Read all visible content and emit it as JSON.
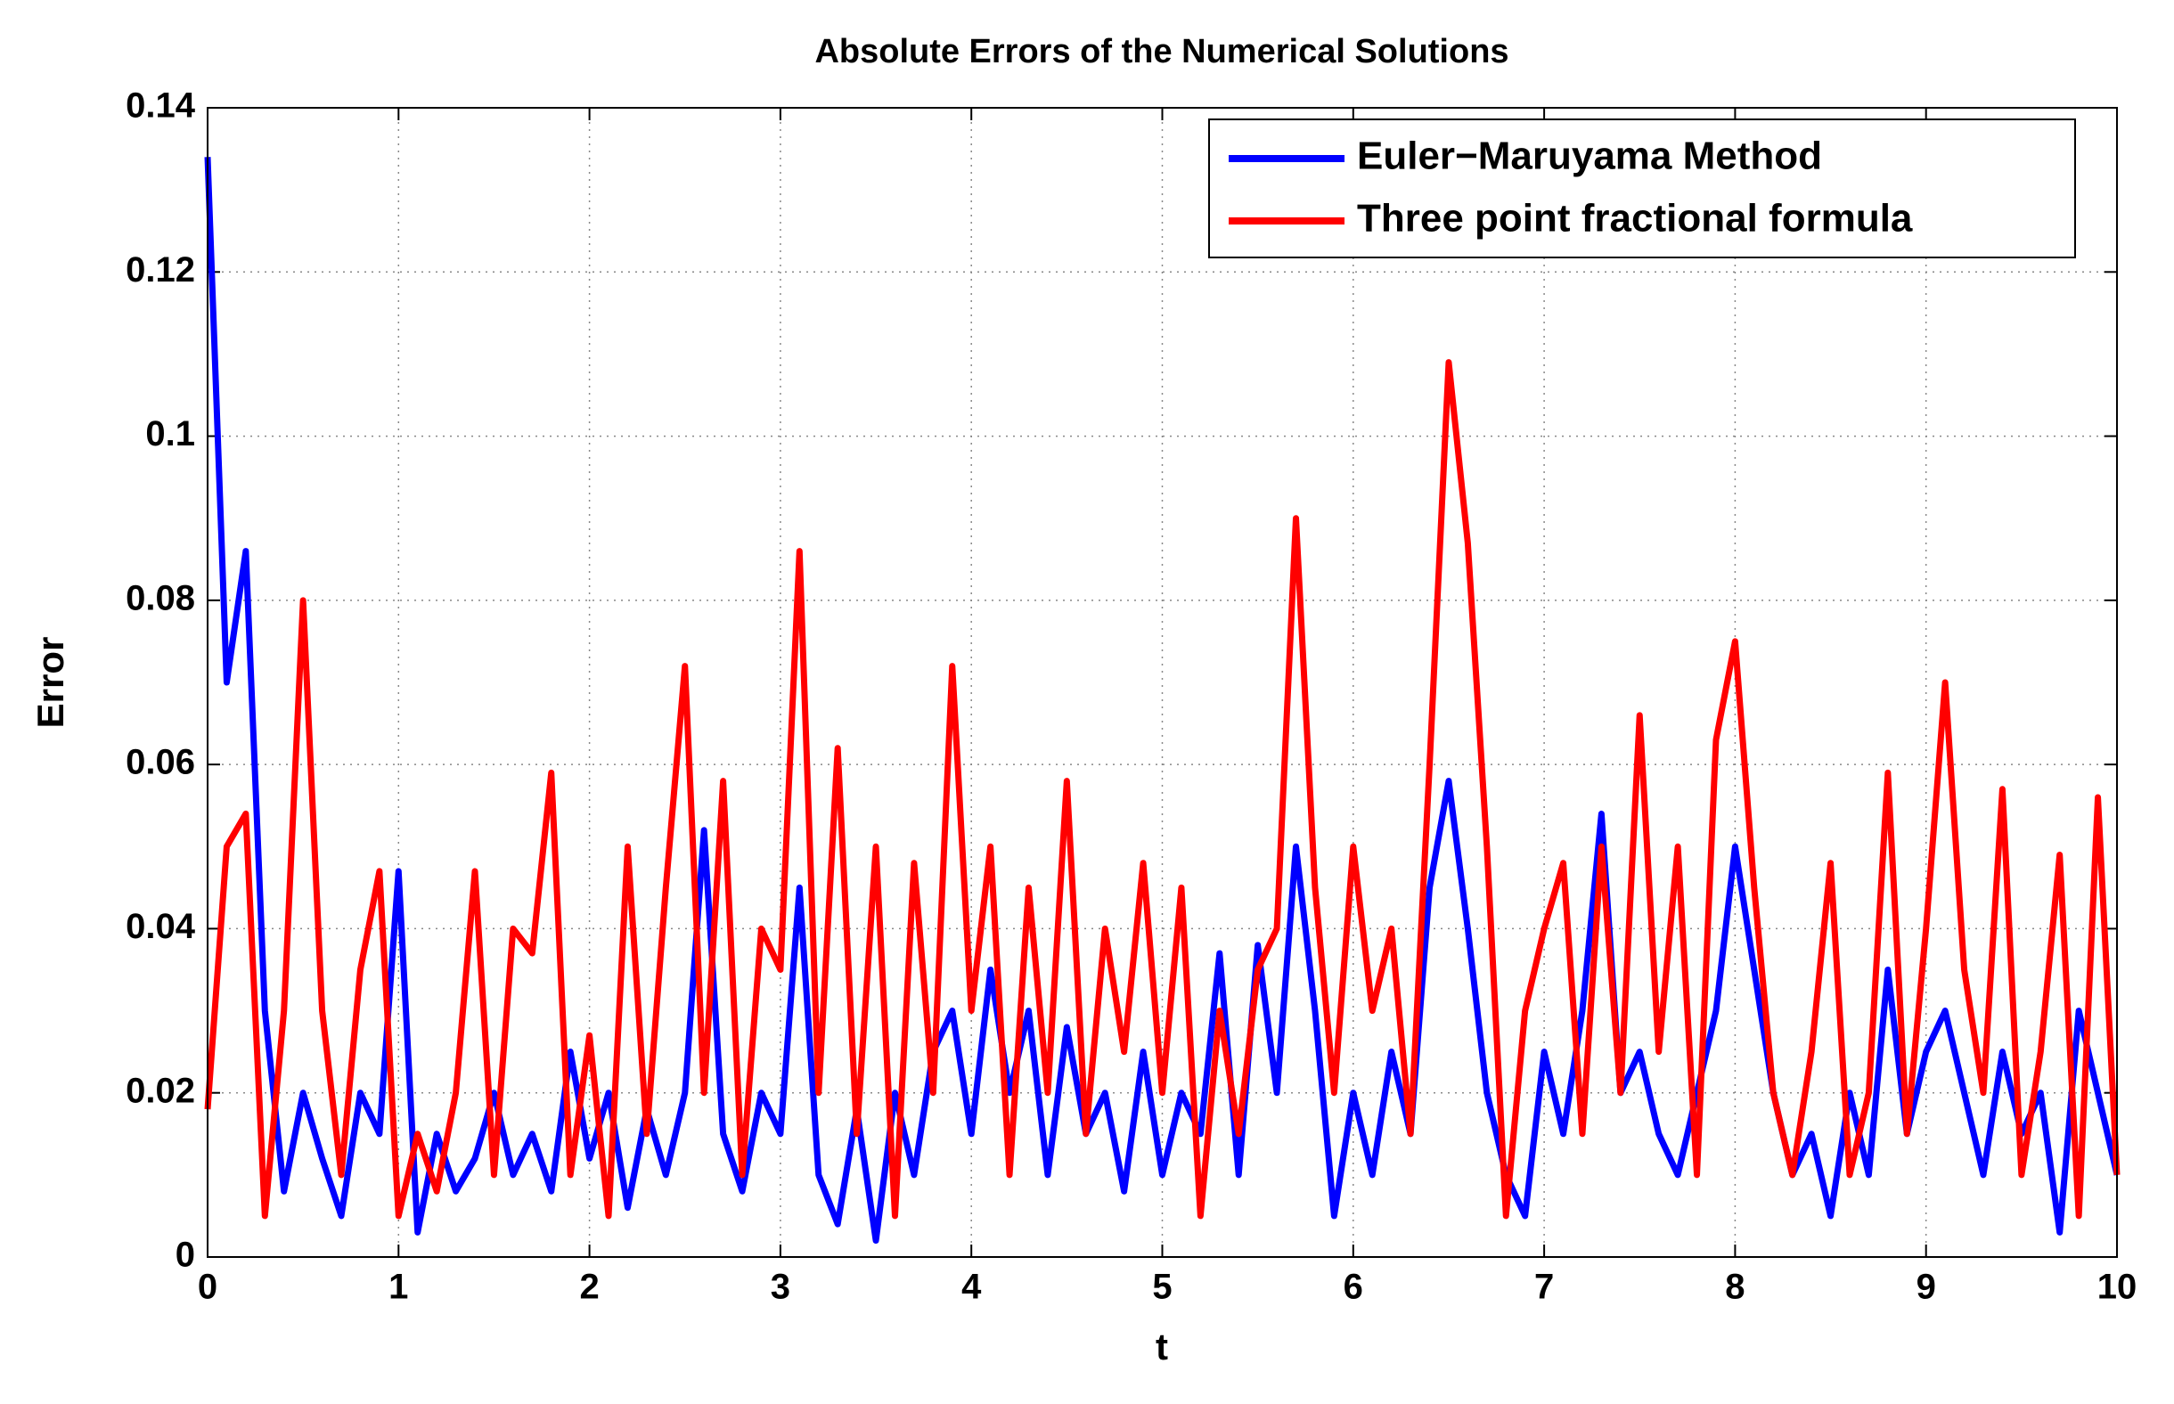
{
  "chart_data": {
    "type": "line",
    "title": "Absolute Errors of the Numerical Solutions",
    "x_label": "t",
    "y_label": "Error",
    "x": [
      0,
      0.1,
      0.2,
      0.3,
      0.4,
      0.5,
      0.6,
      0.7,
      0.8,
      0.9,
      1,
      1.1,
      1.2,
      1.3,
      1.4,
      1.5,
      1.6,
      1.7,
      1.8,
      1.9,
      2,
      2.1,
      2.2,
      2.3,
      2.4,
      2.5,
      2.6,
      2.7,
      2.8,
      2.9,
      3,
      3.1,
      3.2,
      3.3,
      3.4,
      3.5,
      3.6,
      3.7,
      3.8,
      3.9,
      4,
      4.1,
      4.2,
      4.3,
      4.4,
      4.5,
      4.6,
      4.7,
      4.8,
      4.9,
      5,
      5.1,
      5.2,
      5.3,
      5.4,
      5.5,
      5.6,
      5.7,
      5.8,
      5.9,
      6,
      6.1,
      6.2,
      6.3,
      6.4,
      6.5,
      6.6,
      6.7,
      6.8,
      6.9,
      7,
      7.1,
      7.2,
      7.3,
      7.4,
      7.5,
      7.6,
      7.7,
      7.8,
      7.9,
      8,
      8.1,
      8.2,
      8.3,
      8.4,
      8.5,
      8.6,
      8.7,
      8.8,
      8.9,
      9,
      9.1,
      9.2,
      9.3,
      9.4,
      9.5,
      9.6,
      9.7,
      9.8,
      9.9,
      10
    ],
    "series": [
      {
        "name": "Euler−Maruyama Method",
        "color": "#0000ff",
        "values": [
          0.134,
          0.07,
          0.086,
          0.03,
          0.008,
          0.02,
          0.012,
          0.005,
          0.02,
          0.015,
          0.047,
          0.003,
          0.015,
          0.008,
          0.012,
          0.02,
          0.01,
          0.015,
          0.008,
          0.025,
          0.012,
          0.02,
          0.006,
          0.018,
          0.01,
          0.02,
          0.052,
          0.015,
          0.008,
          0.02,
          0.015,
          0.045,
          0.01,
          0.004,
          0.018,
          0.002,
          0.02,
          0.01,
          0.025,
          0.03,
          0.015,
          0.035,
          0.02,
          0.03,
          0.01,
          0.028,
          0.015,
          0.02,
          0.008,
          0.025,
          0.01,
          0.02,
          0.015,
          0.037,
          0.01,
          0.038,
          0.02,
          0.05,
          0.03,
          0.005,
          0.02,
          0.01,
          0.025,
          0.015,
          0.045,
          0.058,
          0.04,
          0.02,
          0.01,
          0.005,
          0.025,
          0.015,
          0.03,
          0.054,
          0.02,
          0.025,
          0.015,
          0.01,
          0.02,
          0.03,
          0.05,
          0.035,
          0.02,
          0.01,
          0.015,
          0.005,
          0.02,
          0.01,
          0.035,
          0.015,
          0.025,
          0.03,
          0.02,
          0.01,
          0.025,
          0.015,
          0.02,
          0.003,
          0.03,
          0.02,
          0.01
        ]
      },
      {
        "name": "Three point fractional formula",
        "color": "#ff0000",
        "values": [
          0.018,
          0.05,
          0.054,
          0.005,
          0.03,
          0.08,
          0.03,
          0.01,
          0.035,
          0.047,
          0.005,
          0.015,
          0.008,
          0.02,
          0.047,
          0.01,
          0.04,
          0.037,
          0.059,
          0.01,
          0.027,
          0.005,
          0.05,
          0.015,
          0.045,
          0.072,
          0.02,
          0.058,
          0.01,
          0.04,
          0.035,
          0.086,
          0.02,
          0.062,
          0.015,
          0.05,
          0.005,
          0.048,
          0.02,
          0.072,
          0.03,
          0.05,
          0.01,
          0.045,
          0.02,
          0.058,
          0.015,
          0.04,
          0.025,
          0.048,
          0.02,
          0.045,
          0.005,
          0.03,
          0.015,
          0.035,
          0.04,
          0.09,
          0.045,
          0.02,
          0.05,
          0.03,
          0.04,
          0.015,
          0.06,
          0.109,
          0.087,
          0.05,
          0.005,
          0.03,
          0.04,
          0.048,
          0.015,
          0.05,
          0.02,
          0.066,
          0.025,
          0.05,
          0.01,
          0.063,
          0.075,
          0.045,
          0.02,
          0.01,
          0.025,
          0.048,
          0.01,
          0.02,
          0.059,
          0.015,
          0.04,
          0.07,
          0.035,
          0.02,
          0.057,
          0.01,
          0.025,
          0.049,
          0.005,
          0.056,
          0.01
        ]
      }
    ],
    "xlim": [
      0,
      10
    ],
    "ylim": [
      0,
      0.14
    ],
    "xticks": [
      0,
      1,
      2,
      3,
      4,
      5,
      6,
      7,
      8,
      9,
      10
    ],
    "yticks": [
      0,
      0.02,
      0.04,
      0.06,
      0.08,
      0.1,
      0.12,
      0.14
    ],
    "grid": true,
    "legend": "upper right"
  }
}
